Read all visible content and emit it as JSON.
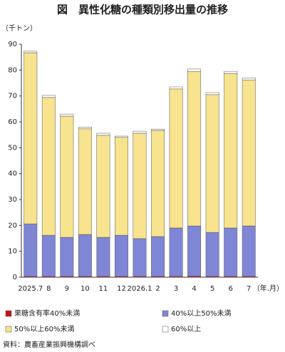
{
  "chart_data": {
    "type": "stacked-bar",
    "title": "図　異性化糖の種類別移出量の推移",
    "y_unit": "（千トン）",
    "x_unit": "（年.月）",
    "source": "資料：農畜産業振興機構調べ",
    "categories": [
      "2025.7",
      "8",
      "9",
      "10",
      "11",
      "12",
      "2026.1",
      "2",
      "3",
      "4",
      "5",
      "6",
      "7"
    ],
    "series": [
      {
        "name": "果糖含有率40%未満",
        "color": "#cc1010",
        "values": [
          0.3,
          0.3,
          0.3,
          0.3,
          0.3,
          0.3,
          0.3,
          0.3,
          0.3,
          0.4,
          0.3,
          0.3,
          0.3
        ]
      },
      {
        "name": "40%以上50%未満",
        "color": "#7f86d6",
        "values": [
          20.3,
          15.9,
          15.1,
          16.2,
          15.1,
          15.9,
          14.6,
          15.4,
          18.7,
          19.4,
          17.0,
          18.7,
          19.5
        ]
      },
      {
        "name": "50%以上60%未満",
        "color": "#f8e38e",
        "values": [
          66.1,
          53.2,
          46.8,
          40.8,
          39.4,
          37.8,
          40.7,
          41.0,
          53.7,
          59.7,
          53.2,
          59.7,
          56.4
        ]
      },
      {
        "name": "60%以上",
        "color": "#ffffff",
        "values": [
          0.6,
          0.8,
          0.8,
          0.7,
          0.8,
          0.5,
          0.8,
          0.5,
          0.8,
          0.9,
          0.8,
          0.8,
          0.8
        ]
      }
    ],
    "ylim": [
      0,
      90
    ],
    "yticks": [
      0,
      10,
      20,
      30,
      40,
      50,
      60,
      70,
      80,
      90
    ]
  }
}
